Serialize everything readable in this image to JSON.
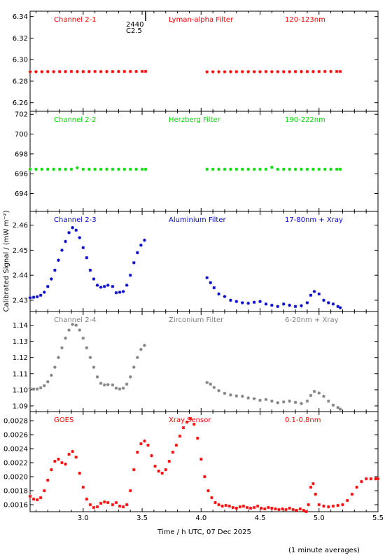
{
  "figure": {
    "xlabel": "Time / h UTC, 07 Dec 2025",
    "ylabel": "Calibrated Signal / (mW m⁻²)",
    "note": "(1 minute averages)",
    "annotation": {
      "lines": [
        "2440",
        "C2.5"
      ],
      "x": 3.5
    },
    "xlim": [
      2.55,
      5.5
    ],
    "xticks": [
      3.0,
      3.5,
      4.0,
      4.5,
      5.0,
      5.5
    ],
    "xtick_labels": [
      "3.0",
      "3.5",
      "4.0",
      "4.5",
      "5.0",
      "5.5"
    ]
  },
  "chart_data": [
    {
      "type": "scatter",
      "channel": "Channel 2-1",
      "filter": "Lyman-alpha Filter",
      "band": "120-123nm",
      "color": "#ff0000",
      "ylim": [
        6.252,
        6.345
      ],
      "yticks": [
        "6.26",
        "6.28",
        "6.30",
        "6.32",
        "6.34"
      ],
      "x": [
        2.55,
        2.6,
        2.65,
        2.7,
        2.75,
        2.8,
        2.85,
        2.9,
        2.95,
        3.0,
        3.05,
        3.1,
        3.15,
        3.2,
        3.25,
        3.3,
        3.35,
        3.4,
        3.45,
        3.5,
        3.53,
        4.05,
        4.1,
        4.15,
        4.2,
        4.25,
        4.3,
        4.35,
        4.4,
        4.45,
        4.5,
        4.55,
        4.6,
        4.65,
        4.7,
        4.75,
        4.8,
        4.85,
        4.9,
        4.95,
        5.0,
        5.05,
        5.1,
        5.15,
        5.18
      ],
      "y": [
        6.2887,
        6.2888,
        6.2888,
        6.2889,
        6.2888,
        6.2889,
        6.2889,
        6.289,
        6.2889,
        6.2889,
        6.2889,
        6.289,
        6.2889,
        6.2889,
        6.2889,
        6.289,
        6.289,
        6.289,
        6.289,
        6.2891,
        6.2891,
        6.2886,
        6.2887,
        6.2887,
        6.2887,
        6.2888,
        6.2888,
        6.2888,
        6.2888,
        6.2888,
        6.2888,
        6.2889,
        6.2888,
        6.2888,
        6.2888,
        6.2888,
        6.2889,
        6.2889,
        6.2889,
        6.2889,
        6.2889,
        6.289,
        6.289,
        6.289,
        6.289
      ]
    },
    {
      "type": "scatter",
      "channel": "Channel 2-2",
      "filter": "Herzberg Filter",
      "band": "190-222nm",
      "color": "#00dd00",
      "ylim": [
        692.2,
        702.3
      ],
      "yticks": [
        "694",
        "696",
        "698",
        "700",
        "702"
      ],
      "x": [
        2.55,
        2.6,
        2.65,
        2.7,
        2.75,
        2.8,
        2.85,
        2.9,
        2.95,
        3.0,
        3.05,
        3.1,
        3.15,
        3.2,
        3.25,
        3.3,
        3.35,
        3.4,
        3.45,
        3.5,
        3.53,
        4.05,
        4.1,
        4.15,
        4.2,
        4.25,
        4.3,
        4.35,
        4.4,
        4.45,
        4.5,
        4.55,
        4.6,
        4.65,
        4.7,
        4.75,
        4.8,
        4.85,
        4.9,
        4.95,
        5.0,
        5.05,
        5.1,
        5.15,
        5.18
      ],
      "y": [
        696.45,
        696.45,
        696.45,
        696.45,
        696.45,
        696.45,
        696.45,
        696.45,
        696.6,
        696.45,
        696.45,
        696.45,
        696.45,
        696.45,
        696.45,
        696.45,
        696.45,
        696.45,
        696.45,
        696.45,
        696.45,
        696.45,
        696.45,
        696.45,
        696.45,
        696.45,
        696.45,
        696.45,
        696.45,
        696.45,
        696.45,
        696.45,
        696.65,
        696.45,
        696.45,
        696.45,
        696.45,
        696.45,
        696.45,
        696.45,
        696.45,
        696.45,
        696.45,
        696.45,
        696.45
      ]
    },
    {
      "type": "scatter",
      "channel": "Channel 2-3",
      "filter": "Aluminium Filter",
      "band": "17-80nm + Xray",
      "color": "#0000cc",
      "ylim": [
        2.4255,
        2.4655
      ],
      "yticks": [
        "2.43",
        "2.44",
        "2.45",
        "2.46"
      ],
      "x": [
        2.55,
        2.58,
        2.61,
        2.64,
        2.67,
        2.7,
        2.73,
        2.76,
        2.79,
        2.82,
        2.85,
        2.88,
        2.91,
        2.94,
        2.97,
        3.0,
        3.03,
        3.06,
        3.09,
        3.12,
        3.15,
        3.18,
        3.21,
        3.25,
        3.28,
        3.31,
        3.34,
        3.37,
        3.4,
        3.43,
        3.46,
        3.49,
        3.52,
        4.05,
        4.08,
        4.11,
        4.15,
        4.2,
        4.25,
        4.3,
        4.35,
        4.4,
        4.45,
        4.5,
        4.55,
        4.6,
        4.65,
        4.7,
        4.75,
        4.8,
        4.85,
        4.9,
        4.93,
        4.96,
        5.0,
        5.04,
        5.08,
        5.12,
        5.16,
        5.18
      ],
      "y": [
        2.431,
        2.4312,
        2.4314,
        2.432,
        2.4332,
        2.4355,
        2.4385,
        2.442,
        2.446,
        2.45,
        2.4535,
        2.457,
        2.459,
        2.458,
        2.455,
        2.451,
        2.447,
        2.442,
        2.4385,
        2.436,
        2.4352,
        2.4355,
        2.436,
        2.4355,
        2.433,
        2.4332,
        2.4335,
        2.436,
        2.44,
        2.445,
        2.449,
        2.452,
        2.454,
        2.439,
        2.437,
        2.435,
        2.4325,
        2.4315,
        2.43,
        2.4295,
        2.429,
        2.4288,
        2.4292,
        2.4295,
        2.4285,
        2.428,
        2.4275,
        2.4285,
        2.428,
        2.4275,
        2.4278,
        2.429,
        2.432,
        2.4335,
        2.4325,
        2.43,
        2.429,
        2.4285,
        2.4275,
        2.427
      ]
    },
    {
      "type": "scatter",
      "channel": "Channel 2-4",
      "filter": "Zirconium Filter",
      "band": "6-20nm + Xray",
      "color": "#808080",
      "ylim": [
        1.0865,
        1.1485
      ],
      "yticks": [
        "1.09",
        "1.10",
        "1.11",
        "1.12",
        "1.13",
        "1.14"
      ],
      "x": [
        2.55,
        2.58,
        2.61,
        2.64,
        2.67,
        2.7,
        2.73,
        2.76,
        2.79,
        2.82,
        2.85,
        2.88,
        2.91,
        2.94,
        2.97,
        3.0,
        3.03,
        3.06,
        3.09,
        3.12,
        3.15,
        3.18,
        3.21,
        3.25,
        3.28,
        3.31,
        3.34,
        3.37,
        3.4,
        3.43,
        3.46,
        3.49,
        3.52,
        4.05,
        4.08,
        4.11,
        4.15,
        4.2,
        4.25,
        4.3,
        4.35,
        4.4,
        4.45,
        4.5,
        4.55,
        4.6,
        4.65,
        4.7,
        4.75,
        4.8,
        4.85,
        4.9,
        4.93,
        4.96,
        5.0,
        5.04,
        5.08,
        5.12,
        5.16,
        5.18
      ],
      "y": [
        1.101,
        1.1005,
        1.1005,
        1.1012,
        1.1025,
        1.105,
        1.109,
        1.114,
        1.12,
        1.126,
        1.132,
        1.137,
        1.1405,
        1.14,
        1.137,
        1.132,
        1.126,
        1.12,
        1.114,
        1.108,
        1.104,
        1.103,
        1.1032,
        1.103,
        1.101,
        1.1005,
        1.101,
        1.1035,
        1.108,
        1.114,
        1.12,
        1.125,
        1.1275,
        1.1045,
        1.1035,
        1.1015,
        1.0995,
        1.0978,
        1.0968,
        1.0962,
        1.096,
        1.095,
        1.0945,
        1.0935,
        1.094,
        1.093,
        1.092,
        1.0925,
        1.093,
        1.0922,
        1.0915,
        1.093,
        1.0965,
        1.099,
        1.098,
        1.096,
        1.093,
        1.0905,
        1.089,
        1.088
      ]
    },
    {
      "type": "scatter",
      "channel": "GOES",
      "filter": "Xray Sensor",
      "band": "0.1-0.8nm",
      "color": "#ff0000",
      "ylim": [
        0.0015,
        0.00293
      ],
      "yticks": [
        "0.0016",
        "0.0018",
        "0.0020",
        "0.0022",
        "0.0024",
        "0.0026",
        "0.0028"
      ],
      "x": [
        2.55,
        2.58,
        2.61,
        2.64,
        2.67,
        2.7,
        2.73,
        2.76,
        2.79,
        2.82,
        2.85,
        2.88,
        2.91,
        2.94,
        2.97,
        3.0,
        3.03,
        3.06,
        3.09,
        3.12,
        3.15,
        3.18,
        3.21,
        3.25,
        3.28,
        3.31,
        3.34,
        3.37,
        3.4,
        3.43,
        3.46,
        3.49,
        3.52,
        3.55,
        3.58,
        3.61,
        3.64,
        3.67,
        3.7,
        3.73,
        3.76,
        3.79,
        3.82,
        3.85,
        3.88,
        3.91,
        3.94,
        3.97,
        4.0,
        4.03,
        4.06,
        4.09,
        4.12,
        4.15,
        4.18,
        4.21,
        4.24,
        4.27,
        4.3,
        4.33,
        4.36,
        4.39,
        4.42,
        4.45,
        4.48,
        4.51,
        4.54,
        4.57,
        4.6,
        4.63,
        4.66,
        4.69,
        4.72,
        4.75,
        4.78,
        4.81,
        4.84,
        4.87,
        4.89,
        4.91,
        4.93,
        4.95,
        4.97,
        5.0,
        5.04,
        5.08,
        5.12,
        5.16,
        5.2,
        5.24,
        5.28,
        5.32,
        5.36,
        5.4,
        5.44,
        5.48,
        5.5
      ],
      "y": [
        0.00172,
        0.00168,
        0.00167,
        0.0017,
        0.0018,
        0.00195,
        0.0021,
        0.00222,
        0.00225,
        0.0022,
        0.00218,
        0.00232,
        0.00236,
        0.00228,
        0.00205,
        0.00185,
        0.00168,
        0.0016,
        0.00156,
        0.00157,
        0.00162,
        0.00164,
        0.00163,
        0.0016,
        0.00163,
        0.00158,
        0.00157,
        0.0016,
        0.0018,
        0.0021,
        0.00235,
        0.00247,
        0.00251,
        0.00245,
        0.0023,
        0.00215,
        0.00208,
        0.00205,
        0.0021,
        0.00222,
        0.00235,
        0.00245,
        0.00258,
        0.0027,
        0.00278,
        0.00283,
        0.00275,
        0.00255,
        0.00225,
        0.002,
        0.0018,
        0.0017,
        0.00163,
        0.0016,
        0.00158,
        0.00159,
        0.00158,
        0.00156,
        0.00155,
        0.00157,
        0.00158,
        0.00156,
        0.00155,
        0.00156,
        0.00158,
        0.00155,
        0.00154,
        0.00156,
        0.00155,
        0.00154,
        0.00153,
        0.00154,
        0.00153,
        0.00155,
        0.00153,
        0.00152,
        0.00154,
        0.00152,
        0.0015,
        0.0016,
        0.00185,
        0.0019,
        0.00175,
        0.0016,
        0.00158,
        0.00157,
        0.00158,
        0.00159,
        0.0016,
        0.00166,
        0.00175,
        0.00185,
        0.00193,
        0.00197,
        0.00197,
        0.00197,
        0.00197
      ]
    }
  ]
}
